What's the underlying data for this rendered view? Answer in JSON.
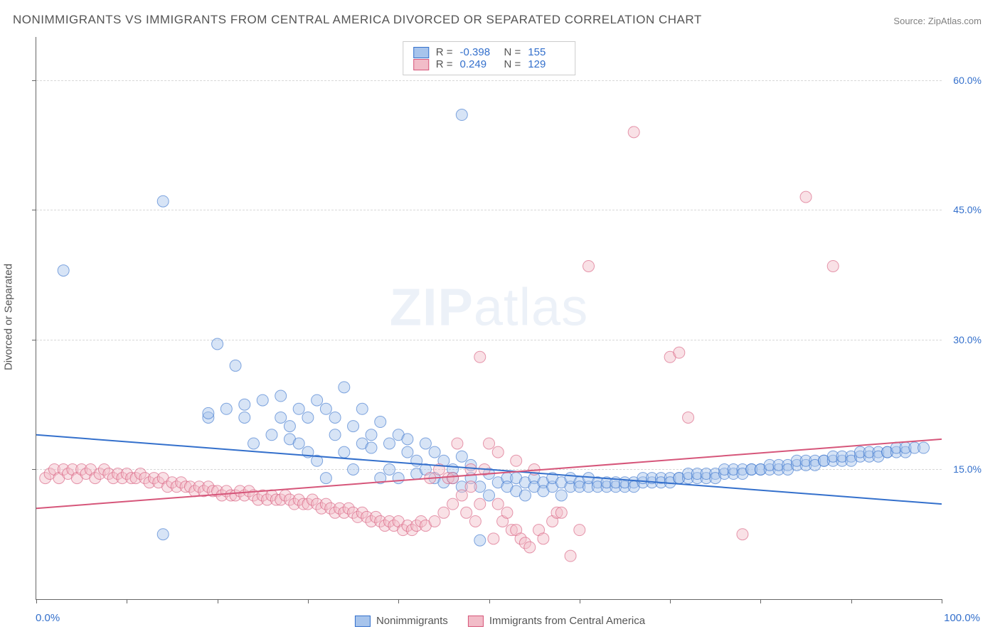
{
  "title": "NONIMMIGRANTS VS IMMIGRANTS FROM CENTRAL AMERICA DIVORCED OR SEPARATED CORRELATION CHART",
  "source": {
    "label": "Source:",
    "name": "ZipAtlas.com"
  },
  "watermark": {
    "part1": "ZIP",
    "part2": "atlas"
  },
  "y_axis_label": "Divorced or Separated",
  "chart": {
    "type": "scatter",
    "xlim": [
      0,
      100
    ],
    "ylim": [
      0,
      65
    ],
    "x_min_label": "0.0%",
    "x_max_label": "100.0%",
    "yticks": [
      15,
      30,
      45,
      60
    ],
    "ytick_labels": [
      "15.0%",
      "30.0%",
      "45.0%",
      "60.0%"
    ],
    "xticks": [
      0,
      10,
      20,
      30,
      40,
      50,
      60,
      70,
      80,
      90,
      100
    ],
    "grid_color": "#d8d8d8",
    "axis_color": "#666666",
    "background_color": "#ffffff",
    "tick_label_color": "#3470cc",
    "label_color": "#555555",
    "marker_radius": 8,
    "marker_opacity": 0.45,
    "line_width": 2
  },
  "series": [
    {
      "name": "Nonimmigrants",
      "color_fill": "#a7c4ec",
      "color_stroke": "#3470cc",
      "r": "-0.398",
      "n": "155",
      "trend": {
        "x1": 0,
        "y1": 19.0,
        "x2": 100,
        "y2": 11.0
      },
      "points": [
        [
          3,
          38
        ],
        [
          14,
          46
        ],
        [
          14,
          7.5
        ],
        [
          19,
          21
        ],
        [
          19,
          21.5
        ],
        [
          20,
          29.5
        ],
        [
          21,
          22
        ],
        [
          22,
          27
        ],
        [
          23,
          21
        ],
        [
          23,
          22.5
        ],
        [
          24,
          18
        ],
        [
          25,
          23
        ],
        [
          26,
          19
        ],
        [
          27,
          21
        ],
        [
          27,
          23.5
        ],
        [
          28,
          18.5
        ],
        [
          28,
          20
        ],
        [
          29,
          18
        ],
        [
          29,
          22
        ],
        [
          30,
          21
        ],
        [
          30,
          17
        ],
        [
          31,
          23
        ],
        [
          31,
          16
        ],
        [
          32,
          22
        ],
        [
          32,
          14
        ],
        [
          33,
          19
        ],
        [
          33,
          21
        ],
        [
          34,
          24.5
        ],
        [
          34,
          17
        ],
        [
          35,
          20
        ],
        [
          35,
          15
        ],
        [
          36,
          22
        ],
        [
          36,
          18
        ],
        [
          37,
          17.5
        ],
        [
          37,
          19
        ],
        [
          38,
          20.5
        ],
        [
          38,
          14
        ],
        [
          39,
          18
        ],
        [
          39,
          15
        ],
        [
          40,
          19
        ],
        [
          40,
          14
        ],
        [
          41,
          17
        ],
        [
          41,
          18.5
        ],
        [
          42,
          14.5
        ],
        [
          42,
          16
        ],
        [
          43,
          18
        ],
        [
          43,
          15
        ],
        [
          44,
          17
        ],
        [
          44,
          14
        ],
        [
          45,
          16
        ],
        [
          45,
          13.5
        ],
        [
          46,
          15
        ],
        [
          46,
          14
        ],
        [
          47,
          16.5
        ],
        [
          47,
          13
        ],
        [
          48,
          15.5
        ],
        [
          48,
          14
        ],
        [
          49,
          6.8
        ],
        [
          49,
          13
        ],
        [
          50,
          14.5
        ],
        [
          50,
          12
        ],
        [
          51,
          13.5
        ],
        [
          47,
          56
        ],
        [
          52,
          14
        ],
        [
          52,
          13
        ],
        [
          53,
          12.5
        ],
        [
          53,
          14
        ],
        [
          54,
          13.5
        ],
        [
          54,
          12
        ],
        [
          55,
          14
        ],
        [
          55,
          13
        ],
        [
          56,
          13.5
        ],
        [
          56,
          12.5
        ],
        [
          57,
          13
        ],
        [
          57,
          14
        ],
        [
          58,
          13.5
        ],
        [
          58,
          12
        ],
        [
          59,
          13
        ],
        [
          59,
          14
        ],
        [
          60,
          13.5
        ],
        [
          60,
          13
        ],
        [
          61,
          13
        ],
        [
          61,
          14
        ],
        [
          62,
          13.5
        ],
        [
          62,
          13
        ],
        [
          63,
          13
        ],
        [
          63,
          13.5
        ],
        [
          64,
          13
        ],
        [
          64,
          13.5
        ],
        [
          65,
          13
        ],
        [
          65,
          13.5
        ],
        [
          66,
          13.5
        ],
        [
          66,
          13
        ],
        [
          67,
          13.5
        ],
        [
          67,
          14
        ],
        [
          68,
          13.5
        ],
        [
          68,
          14
        ],
        [
          69,
          14
        ],
        [
          69,
          13.5
        ],
        [
          70,
          14
        ],
        [
          70,
          13.5
        ],
        [
          71,
          14
        ],
        [
          71,
          14
        ],
        [
          72,
          14
        ],
        [
          72,
          14.5
        ],
        [
          73,
          14
        ],
        [
          73,
          14.5
        ],
        [
          74,
          14
        ],
        [
          74,
          14.5
        ],
        [
          75,
          14.5
        ],
        [
          75,
          14
        ],
        [
          76,
          14.5
        ],
        [
          76,
          15
        ],
        [
          77,
          14.5
        ],
        [
          77,
          15
        ],
        [
          78,
          15
        ],
        [
          78,
          14.5
        ],
        [
          79,
          15
        ],
        [
          79,
          15
        ],
        [
          80,
          15
        ],
        [
          80,
          15
        ],
        [
          81,
          15
        ],
        [
          81,
          15.5
        ],
        [
          82,
          15
        ],
        [
          82,
          15.5
        ],
        [
          83,
          15.5
        ],
        [
          83,
          15
        ],
        [
          84,
          15.5
        ],
        [
          84,
          16
        ],
        [
          85,
          15.5
        ],
        [
          85,
          16
        ],
        [
          86,
          16
        ],
        [
          86,
          15.5
        ],
        [
          87,
          16
        ],
        [
          87,
          16
        ],
        [
          88,
          16
        ],
        [
          88,
          16.5
        ],
        [
          89,
          16
        ],
        [
          89,
          16.5
        ],
        [
          90,
          16.5
        ],
        [
          90,
          16
        ],
        [
          91,
          16.5
        ],
        [
          91,
          17
        ],
        [
          92,
          16.5
        ],
        [
          92,
          17
        ],
        [
          93,
          17
        ],
        [
          93,
          16.5
        ],
        [
          94,
          17
        ],
        [
          94,
          17
        ],
        [
          95,
          17
        ],
        [
          95,
          17.5
        ],
        [
          96,
          17
        ],
        [
          96,
          17.5
        ],
        [
          97,
          17.5
        ],
        [
          98,
          17.5
        ]
      ]
    },
    {
      "name": "Immigrants from Central America",
      "color_fill": "#f2bcc8",
      "color_stroke": "#d6567a",
      "r": "0.249",
      "n": "129",
      "trend": {
        "x1": 0,
        "y1": 10.5,
        "x2": 100,
        "y2": 18.5
      },
      "points": [
        [
          1,
          14
        ],
        [
          1.5,
          14.5
        ],
        [
          2,
          15
        ],
        [
          2.5,
          14
        ],
        [
          3,
          15
        ],
        [
          3.5,
          14.5
        ],
        [
          4,
          15
        ],
        [
          4.5,
          14
        ],
        [
          5,
          15
        ],
        [
          5.5,
          14.5
        ],
        [
          6,
          15
        ],
        [
          6.5,
          14
        ],
        [
          7,
          14.5
        ],
        [
          7.5,
          15
        ],
        [
          8,
          14.5
        ],
        [
          8.5,
          14
        ],
        [
          9,
          14.5
        ],
        [
          9.5,
          14
        ],
        [
          10,
          14.5
        ],
        [
          10.5,
          14
        ],
        [
          11,
          14
        ],
        [
          11.5,
          14.5
        ],
        [
          12,
          14
        ],
        [
          12.5,
          13.5
        ],
        [
          13,
          14
        ],
        [
          13.5,
          13.5
        ],
        [
          14,
          14
        ],
        [
          14.5,
          13
        ],
        [
          15,
          13.5
        ],
        [
          15.5,
          13
        ],
        [
          16,
          13.5
        ],
        [
          16.5,
          13
        ],
        [
          17,
          13
        ],
        [
          17.5,
          12.5
        ],
        [
          18,
          13
        ],
        [
          18.5,
          12.5
        ],
        [
          19,
          13
        ],
        [
          19.5,
          12.5
        ],
        [
          20,
          12.5
        ],
        [
          20.5,
          12
        ],
        [
          21,
          12.5
        ],
        [
          21.5,
          12
        ],
        [
          22,
          12
        ],
        [
          22.5,
          12.5
        ],
        [
          23,
          12
        ],
        [
          23.5,
          12.5
        ],
        [
          24,
          12
        ],
        [
          24.5,
          11.5
        ],
        [
          25,
          12
        ],
        [
          25.5,
          11.5
        ],
        [
          26,
          12
        ],
        [
          26.5,
          11.5
        ],
        [
          27,
          11.5
        ],
        [
          27.5,
          12
        ],
        [
          28,
          11.5
        ],
        [
          28.5,
          11
        ],
        [
          29,
          11.5
        ],
        [
          29.5,
          11
        ],
        [
          30,
          11
        ],
        [
          30.5,
          11.5
        ],
        [
          31,
          11
        ],
        [
          31.5,
          10.5
        ],
        [
          32,
          11
        ],
        [
          32.5,
          10.5
        ],
        [
          33,
          10
        ],
        [
          33.5,
          10.5
        ],
        [
          34,
          10
        ],
        [
          34.5,
          10.5
        ],
        [
          35,
          10
        ],
        [
          35.5,
          9.5
        ],
        [
          36,
          10
        ],
        [
          36.5,
          9.5
        ],
        [
          37,
          9
        ],
        [
          37.5,
          9.5
        ],
        [
          38,
          9
        ],
        [
          38.5,
          8.5
        ],
        [
          39,
          9
        ],
        [
          39.5,
          8.5
        ],
        [
          40,
          9
        ],
        [
          40.5,
          8
        ],
        [
          41,
          8.5
        ],
        [
          41.5,
          8
        ],
        [
          42,
          8.5
        ],
        [
          42.5,
          9
        ],
        [
          43,
          8.5
        ],
        [
          43.5,
          14
        ],
        [
          44,
          9
        ],
        [
          44.5,
          15
        ],
        [
          45,
          10
        ],
        [
          45.5,
          14
        ],
        [
          46,
          11
        ],
        [
          46.5,
          18
        ],
        [
          47,
          12
        ],
        [
          47.5,
          10
        ],
        [
          48,
          13
        ],
        [
          48.5,
          9
        ],
        [
          49,
          11
        ],
        [
          49.5,
          15
        ],
        [
          50,
          18
        ],
        [
          50.5,
          7
        ],
        [
          51,
          11
        ],
        [
          51.5,
          9
        ],
        [
          52,
          10
        ],
        [
          52.5,
          8
        ],
        [
          53,
          8
        ],
        [
          53.5,
          7
        ],
        [
          54,
          6.5
        ],
        [
          54.5,
          6
        ],
        [
          55,
          15
        ],
        [
          55.5,
          8
        ],
        [
          56,
          7
        ],
        [
          49,
          28
        ],
        [
          57,
          9
        ],
        [
          57.5,
          10
        ],
        [
          58,
          10
        ],
        [
          59,
          5
        ],
        [
          60,
          8
        ],
        [
          61,
          38.5
        ],
        [
          66,
          54
        ],
        [
          70,
          28
        ],
        [
          71,
          28.5
        ],
        [
          72,
          21
        ],
        [
          78,
          7.5
        ],
        [
          85,
          46.5
        ],
        [
          88,
          38.5
        ],
        [
          51,
          17
        ],
        [
          53,
          16
        ],
        [
          46,
          14
        ],
        [
          48,
          15
        ]
      ]
    }
  ],
  "legend_stats_labels": {
    "r": "R =",
    "n": "N ="
  },
  "bottom_legend": [
    {
      "label": "Nonimmigrants"
    },
    {
      "label": "Immigrants from Central America"
    }
  ]
}
